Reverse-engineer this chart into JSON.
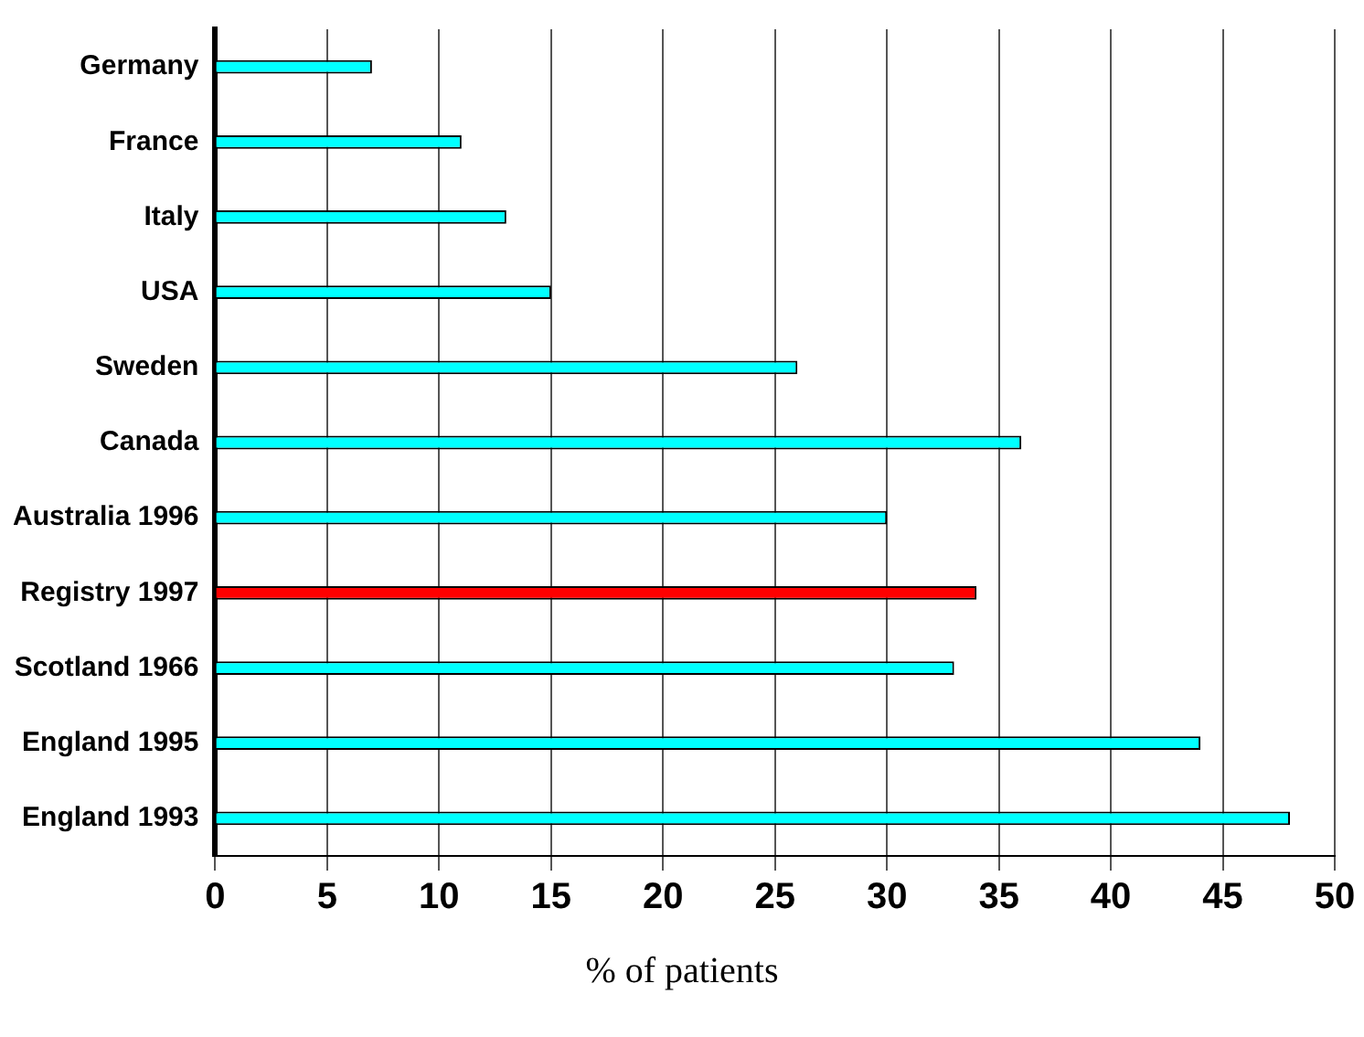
{
  "chart_data": {
    "type": "bar",
    "orientation": "horizontal",
    "xlabel": "% of patients",
    "categories": [
      "Germany",
      "France",
      "Italy",
      "USA",
      "Sweden",
      "Canada",
      "Australia 1996",
      "Registry 1997",
      "Scotland 1966",
      "England 1995",
      "England 1993"
    ],
    "values": [
      7,
      11,
      13,
      15,
      26,
      36,
      30,
      34,
      33,
      44,
      48
    ],
    "colors": [
      "#00ffff",
      "#00ffff",
      "#00ffff",
      "#00ffff",
      "#00ffff",
      "#00ffff",
      "#00ffff",
      "#ff0000",
      "#00ffff",
      "#00ffff",
      "#00ffff"
    ],
    "xlim": [
      0,
      50
    ],
    "xticks": [
      0,
      5,
      10,
      15,
      20,
      25,
      30,
      35,
      40,
      45,
      50
    ],
    "grid": "x",
    "legend": false
  }
}
